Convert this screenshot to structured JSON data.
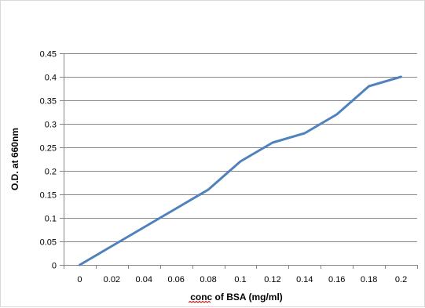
{
  "chart_data": {
    "type": "line",
    "title": "",
    "xlabel": "conc of BSA (mg/ml)",
    "ylabel": "O.D. at 660nm",
    "x": [
      0,
      0.02,
      0.04,
      0.06,
      0.08,
      0.1,
      0.12,
      0.14,
      0.16,
      0.18,
      0.2
    ],
    "series": [
      {
        "values": [
          0,
          0.04,
          0.08,
          0.12,
          0.16,
          0.22,
          0.26,
          0.28,
          0.32,
          0.38,
          0.4
        ],
        "color": "#4F81BD"
      }
    ],
    "x_tick_labels": [
      "0",
      "0.02",
      "0.04",
      "0.06",
      "0.08",
      "0.1",
      "0.12",
      "0.14",
      "0.16",
      "0.18",
      "0.2"
    ],
    "y_tick_labels": [
      "0",
      "0.05",
      "0.1",
      "0.15",
      "0.2",
      "0.25",
      "0.3",
      "0.35",
      "0.4",
      "0.45"
    ],
    "ylim": [
      0,
      0.45
    ],
    "grid": "horizontal",
    "legend": "none",
    "colors": {
      "gridline": "#868686",
      "axis": "#868686",
      "frame": "#d9d9d9",
      "xlabel_underline": "#c00000"
    }
  }
}
